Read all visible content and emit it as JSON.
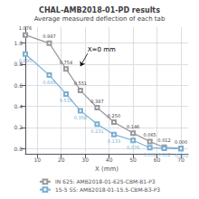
{
  "chart_data": {
    "type": "line",
    "title": "CHAL-AMB2018-01-PD results",
    "subtitle": "Average measured deflection of each tab",
    "xlabel": "X (mm)",
    "x": [
      5,
      15,
      22,
      28,
      35,
      42,
      50,
      57,
      63,
      70
    ],
    "series": [
      {
        "name": "IN 625: AMB2018-01-625-CBM-B1-P3",
        "color": "#999999",
        "marker": "square",
        "values": [
          1.076,
          0.997,
          0.754,
          0.551,
          0.387,
          0.25,
          0.146,
          0.065,
          0.012,
          0
        ],
        "value_labels": [
          "1.076",
          "0.997",
          "0.754",
          "0.551",
          "0.387",
          "0.250",
          "0.146",
          "0.065",
          "0.012",
          "0.000"
        ]
      },
      {
        "name": "15-5 SS: AMB2018-01-15.5-CBM-B3-P3",
        "color": "#7aafd4",
        "marker": "square",
        "values": [
          0.895,
          0.695,
          0.516,
          0.358,
          0.231,
          0.133,
          0.076,
          0.008,
          0.002,
          -0.001
        ],
        "value_labels": [
          "0.895",
          "0.695",
          "0.516",
          "0.358",
          "0.231",
          "0.133",
          "0.076",
          "0.008",
          "0.002",
          "-0.001"
        ]
      }
    ],
    "xlim": [
      5,
      73
    ],
    "ylim": [
      -0.05,
      1.15
    ],
    "xticks": [
      10,
      20,
      30,
      40,
      50,
      60,
      70
    ],
    "yticks": [
      {
        "value": 0,
        "label": "0.0"
      },
      0.2,
      0.4,
      0.6,
      0.8,
      {
        "value": 1,
        "label": "1.0"
      }
    ],
    "grid": true,
    "legend": "bottom",
    "data_labels": true,
    "annotations": [
      "X=0 mm"
    ]
  }
}
